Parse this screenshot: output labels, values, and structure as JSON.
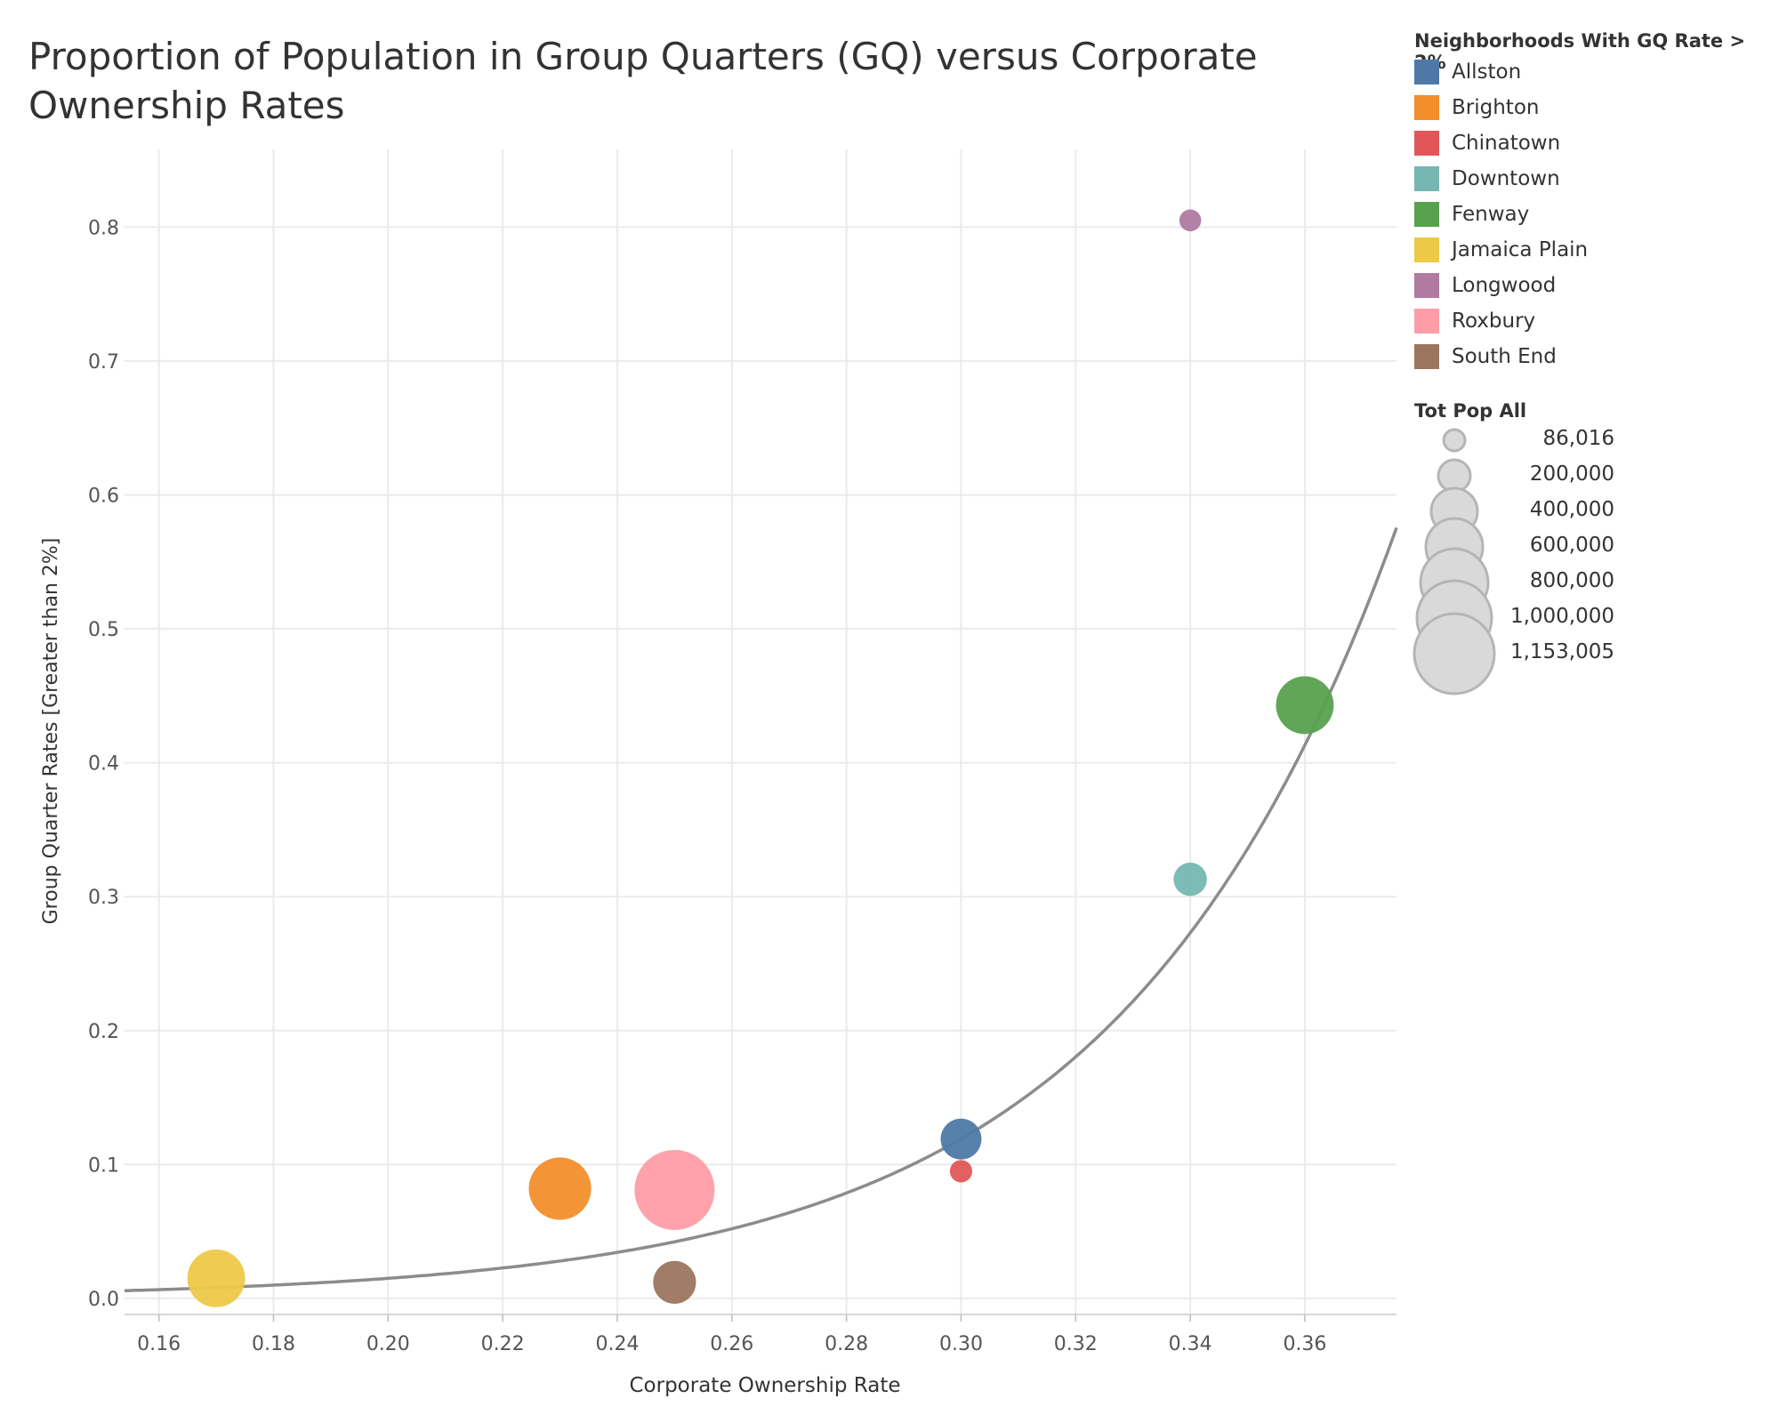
{
  "chart_data": {
    "type": "scatter",
    "title": "Proportion of Population in Group Quarters (GQ) versus Corporate Ownership Rates",
    "xlabel": "Corporate Ownership Rate",
    "ylabel": "Group Quarter Rates [Greater than 2%]",
    "xlim": [
      0.154,
      0.376
    ],
    "ylim": [
      -0.012,
      0.858
    ],
    "x_ticks": [
      "0.16",
      "0.18",
      "0.20",
      "0.22",
      "0.24",
      "0.26",
      "0.28",
      "0.30",
      "0.32",
      "0.34",
      "0.36"
    ],
    "y_ticks": [
      "0.0",
      "0.1",
      "0.2",
      "0.3",
      "0.4",
      "0.5",
      "0.6",
      "0.7",
      "0.8"
    ],
    "grid": true,
    "trend_line": {
      "type": "exponential",
      "a": 0.000238,
      "b": 20.72
    },
    "points": [
      {
        "name": "Allston",
        "x": 0.3,
        "y": 0.119,
        "pop": 300000,
        "color": "#4E79A7"
      },
      {
        "name": "Brighton",
        "x": 0.23,
        "y": 0.082,
        "pop": 700000,
        "color": "#F28E2B"
      },
      {
        "name": "Chinatown",
        "x": 0.3,
        "y": 0.095,
        "pop": 90000,
        "color": "#E15759"
      },
      {
        "name": "Downtown",
        "x": 0.34,
        "y": 0.313,
        "pop": 200000,
        "color": "#76B7B2"
      },
      {
        "name": "Fenway",
        "x": 0.36,
        "y": 0.443,
        "pop": 600000,
        "color": "#59A14F"
      },
      {
        "name": "Jamaica Plain",
        "x": 0.17,
        "y": 0.015,
        "pop": 600000,
        "color": "#EDC948"
      },
      {
        "name": "Longwood",
        "x": 0.34,
        "y": 0.805,
        "pop": 86016,
        "color": "#B07AA1"
      },
      {
        "name": "Roxbury",
        "x": 0.25,
        "y": 0.081,
        "pop": 1153005,
        "color": "#FF9DA7"
      },
      {
        "name": "South End",
        "x": 0.25,
        "y": 0.012,
        "pop": 330000,
        "color": "#9C755F"
      }
    ],
    "color_legend": {
      "title": "Neighborhoods With GQ Rate > 2%",
      "items": [
        "Allston",
        "Brighton",
        "Chinatown",
        "Downtown",
        "Fenway",
        "Jamaica Plain",
        "Longwood",
        "Roxbury",
        "South End"
      ]
    },
    "size_legend": {
      "title": "Tot Pop All",
      "labels": [
        "86,016",
        "200,000",
        "400,000",
        "600,000",
        "800,000",
        "1,000,000",
        "1,153,005"
      ],
      "values": [
        86016,
        200000,
        400000,
        600000,
        800000,
        1000000,
        1153005
      ]
    }
  }
}
